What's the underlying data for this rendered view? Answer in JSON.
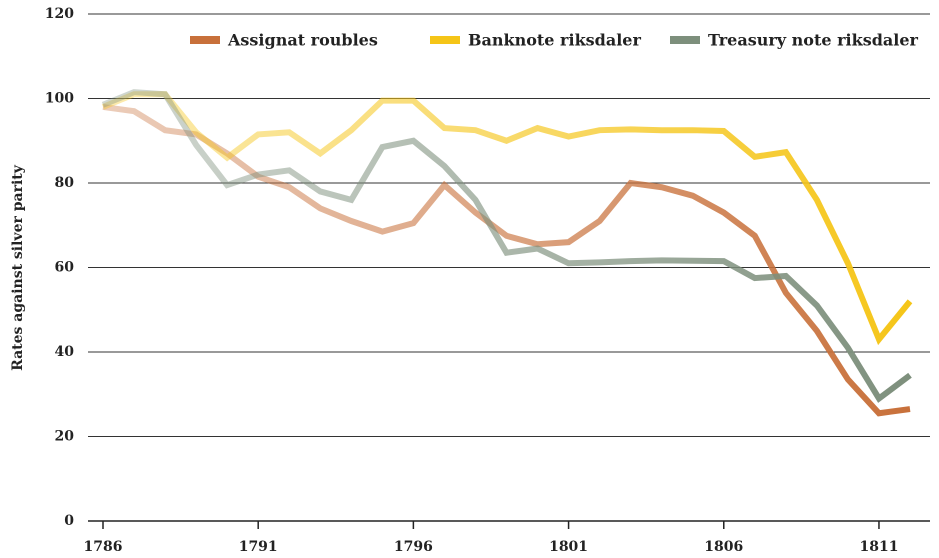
{
  "chart_data": {
    "type": "line",
    "y_label": "Rates against silver parity",
    "x": [
      1786,
      1787,
      1788,
      1789,
      1790,
      1791,
      1792,
      1793,
      1794,
      1795,
      1796,
      1797,
      1798,
      1799,
      1800,
      1801,
      1802,
      1803,
      1804,
      1805,
      1806,
      1807,
      1808,
      1809,
      1810,
      1811,
      1812
    ],
    "series": [
      {
        "name": "Assignat roubles",
        "color": "#c8703a",
        "values": [
          98,
          97,
          92.5,
          91.5,
          87,
          81.5,
          79,
          74,
          71,
          68.5,
          70.5,
          79.5,
          73,
          67.5,
          65.5,
          66,
          71,
          80,
          79,
          77,
          73,
          67.5,
          54,
          45,
          33.5,
          25.5,
          26.5
        ]
      },
      {
        "name": "Banknote riksdaler",
        "color": "#f5c518",
        "values": [
          98,
          101,
          101,
          92,
          86,
          91.5,
          92,
          87,
          92.5,
          99.5,
          99.5,
          93,
          92.5,
          90,
          93,
          91,
          92.5,
          92.7,
          92.5,
          92.5,
          92.3,
          86.2,
          87.3,
          76,
          61,
          43,
          52
        ]
      },
      {
        "name": "Treasury note riksdaler",
        "color": "#7d8f7c",
        "values": [
          98.5,
          101.5,
          101,
          89,
          79.5,
          82,
          83,
          78,
          76,
          88.5,
          90,
          84,
          76,
          63.5,
          64.5,
          61,
          61.2,
          61.5,
          61.7,
          61.6,
          61.5,
          57.5,
          58,
          51,
          41,
          29,
          34.5
        ]
      }
    ],
    "xlim": [
      1786,
      1812
    ],
    "xticks": [
      1786,
      1791,
      1796,
      1801,
      1806,
      1811
    ],
    "ylim": [
      0,
      120
    ],
    "yticks": [
      0,
      20,
      40,
      60,
      80,
      100,
      120
    ],
    "grid": true,
    "legend": "top-right"
  }
}
